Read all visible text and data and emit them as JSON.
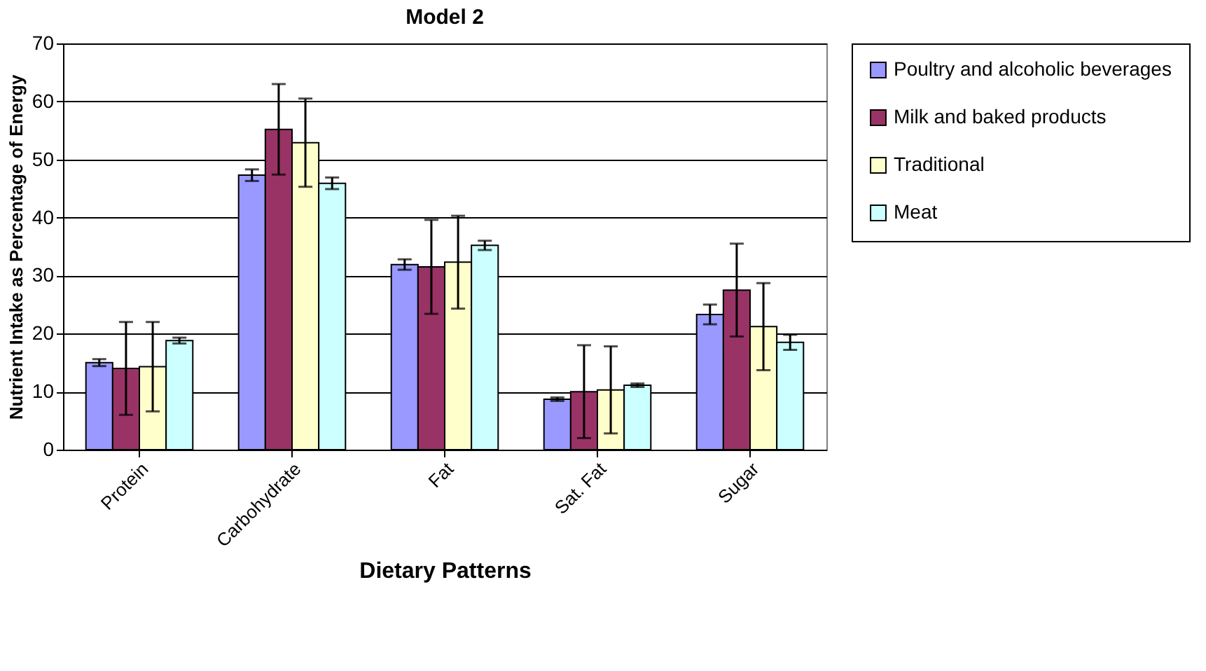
{
  "chart_data": {
    "type": "bar",
    "title": "Model 2",
    "xlabel": "Dietary Patterns",
    "ylabel": "Nutrient Intake as Percentage of Energy",
    "categories": [
      "Protein",
      "Carbohydrate",
      "Fat",
      "Sat. Fat",
      "Sugar"
    ],
    "series": [
      {
        "name": "Poultry and alcoholic beverages",
        "color": "#9999ff",
        "values": [
          15,
          47.3,
          31.9,
          8.7,
          23.3
        ],
        "errors": [
          0.6,
          1,
          0.9,
          0.3,
          1.7
        ]
      },
      {
        "name": "Milk and baked products",
        "color": "#993366",
        "values": [
          14,
          55.2,
          31.5,
          10,
          27.5
        ],
        "errors": [
          8,
          7.8,
          8.1,
          8,
          8
        ]
      },
      {
        "name": "Traditional",
        "color": "#ffffcc",
        "values": [
          14.3,
          52.9,
          32.3,
          10.3,
          21.2
        ],
        "errors": [
          7.7,
          7.6,
          8,
          7.5,
          7.5
        ]
      },
      {
        "name": "Meat",
        "color": "#ccffff",
        "values": [
          18.8,
          45.9,
          35.2,
          11.1,
          18.5
        ],
        "errors": [
          0.5,
          1,
          0.8,
          0.3,
          1.3
        ]
      }
    ],
    "ylim": [
      0,
      70
    ],
    "yticks": [
      0,
      10,
      20,
      30,
      40,
      50,
      60,
      70
    ],
    "grid": "y",
    "legend": "right"
  }
}
